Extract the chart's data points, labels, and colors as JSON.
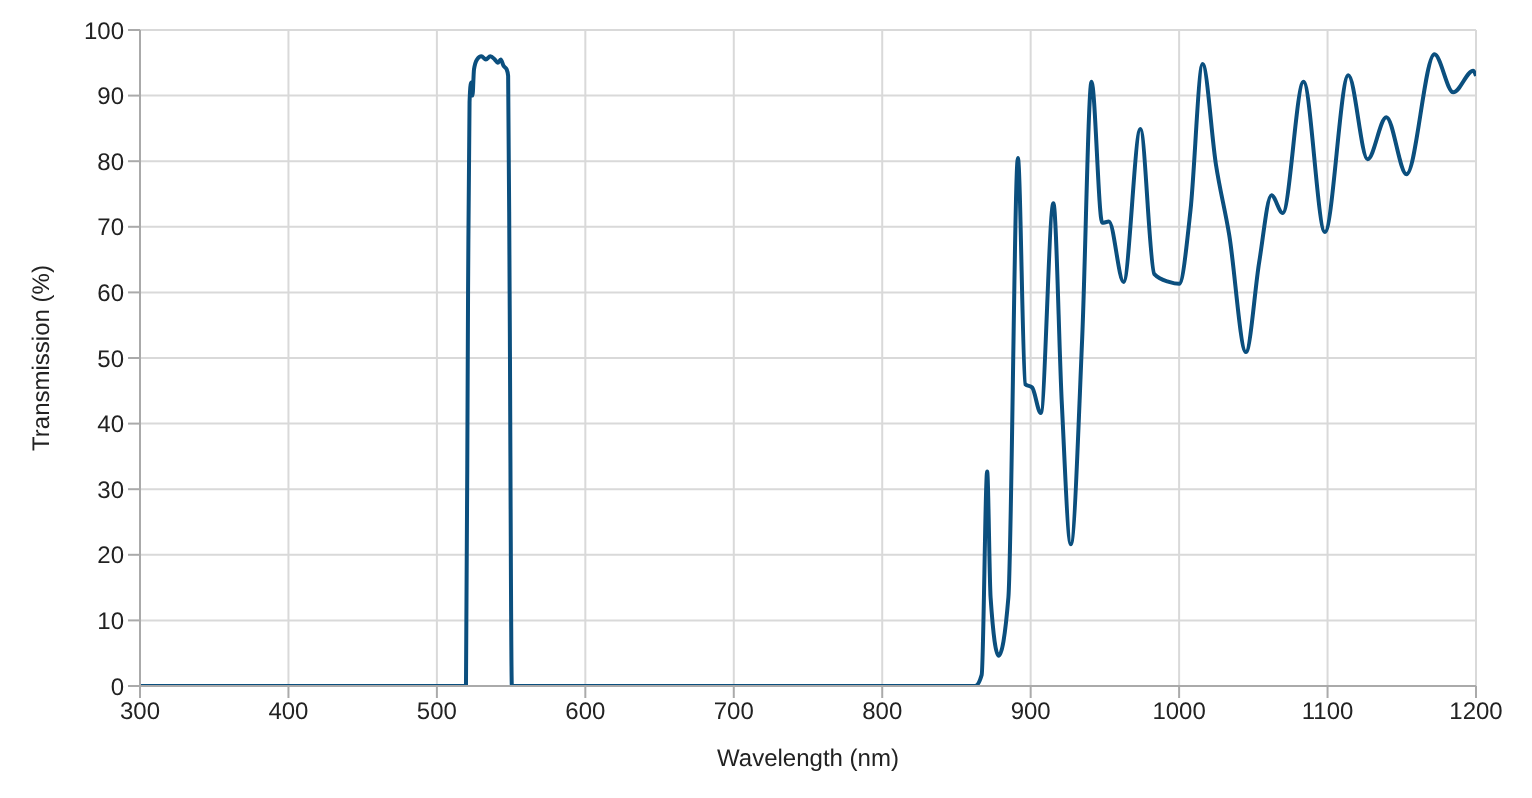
{
  "chart_data": {
    "type": "line",
    "xlabel": "Wavelength (nm)",
    "ylabel": "Transmission (%)",
    "xlim": [
      300,
      1200
    ],
    "xticks": [
      300,
      400,
      500,
      600,
      700,
      800,
      900,
      1000,
      1100,
      1200
    ],
    "ylim": [
      0,
      100
    ],
    "yticks": [
      0,
      10,
      20,
      30,
      40,
      50,
      60,
      70,
      80,
      90,
      100
    ],
    "grid": true,
    "marker": "none",
    "line_style": "solid",
    "series": [
      {
        "color": "#0b4f7e",
        "x": [
          300,
          518,
          519.6,
          521,
          522,
          523,
          524,
          525,
          527,
          530,
          533,
          536,
          539,
          541,
          543,
          545,
          547,
          548,
          549,
          550.5,
          552,
          850,
          862.6,
          867,
          870.7,
          873,
          878.4,
          885,
          891.4,
          896.4,
          901,
          906.8,
          915.3,
          921,
          927,
          934.7,
          941,
          948.2,
          952.7,
          962.6,
          973.9,
          983.3,
          993.2,
          1000,
          1007.7,
          1015.8,
          1024.8,
          1033.8,
          1045,
          1054,
          1062.2,
          1069.8,
          1083.8,
          1098.2,
          1114,
          1127,
          1139.6,
          1153.2,
          1172,
          1184.7,
          1198.2,
          1200
        ],
        "values": [
          0,
          0,
          0,
          60,
          89,
          92,
          90,
          94,
          95.5,
          96,
          95.5,
          96,
          95.5,
          95,
          95.5,
          94.5,
          94,
          93,
          60,
          0,
          0,
          0,
          0,
          1.7,
          32.7,
          13.5,
          4.6,
          13.5,
          80.5,
          46,
          45.5,
          41.6,
          73.6,
          43,
          21.6,
          53,
          92.1,
          70.6,
          70.8,
          61.6,
          84.9,
          62.8,
          61.6,
          61.3,
          72.6,
          94.8,
          79.5,
          68.7,
          50.9,
          64.7,
          74.8,
          72.1,
          92.1,
          69.2,
          93.1,
          80.3,
          86.7,
          78,
          96.3,
          90.5,
          93.8,
          93
        ]
      }
    ]
  }
}
